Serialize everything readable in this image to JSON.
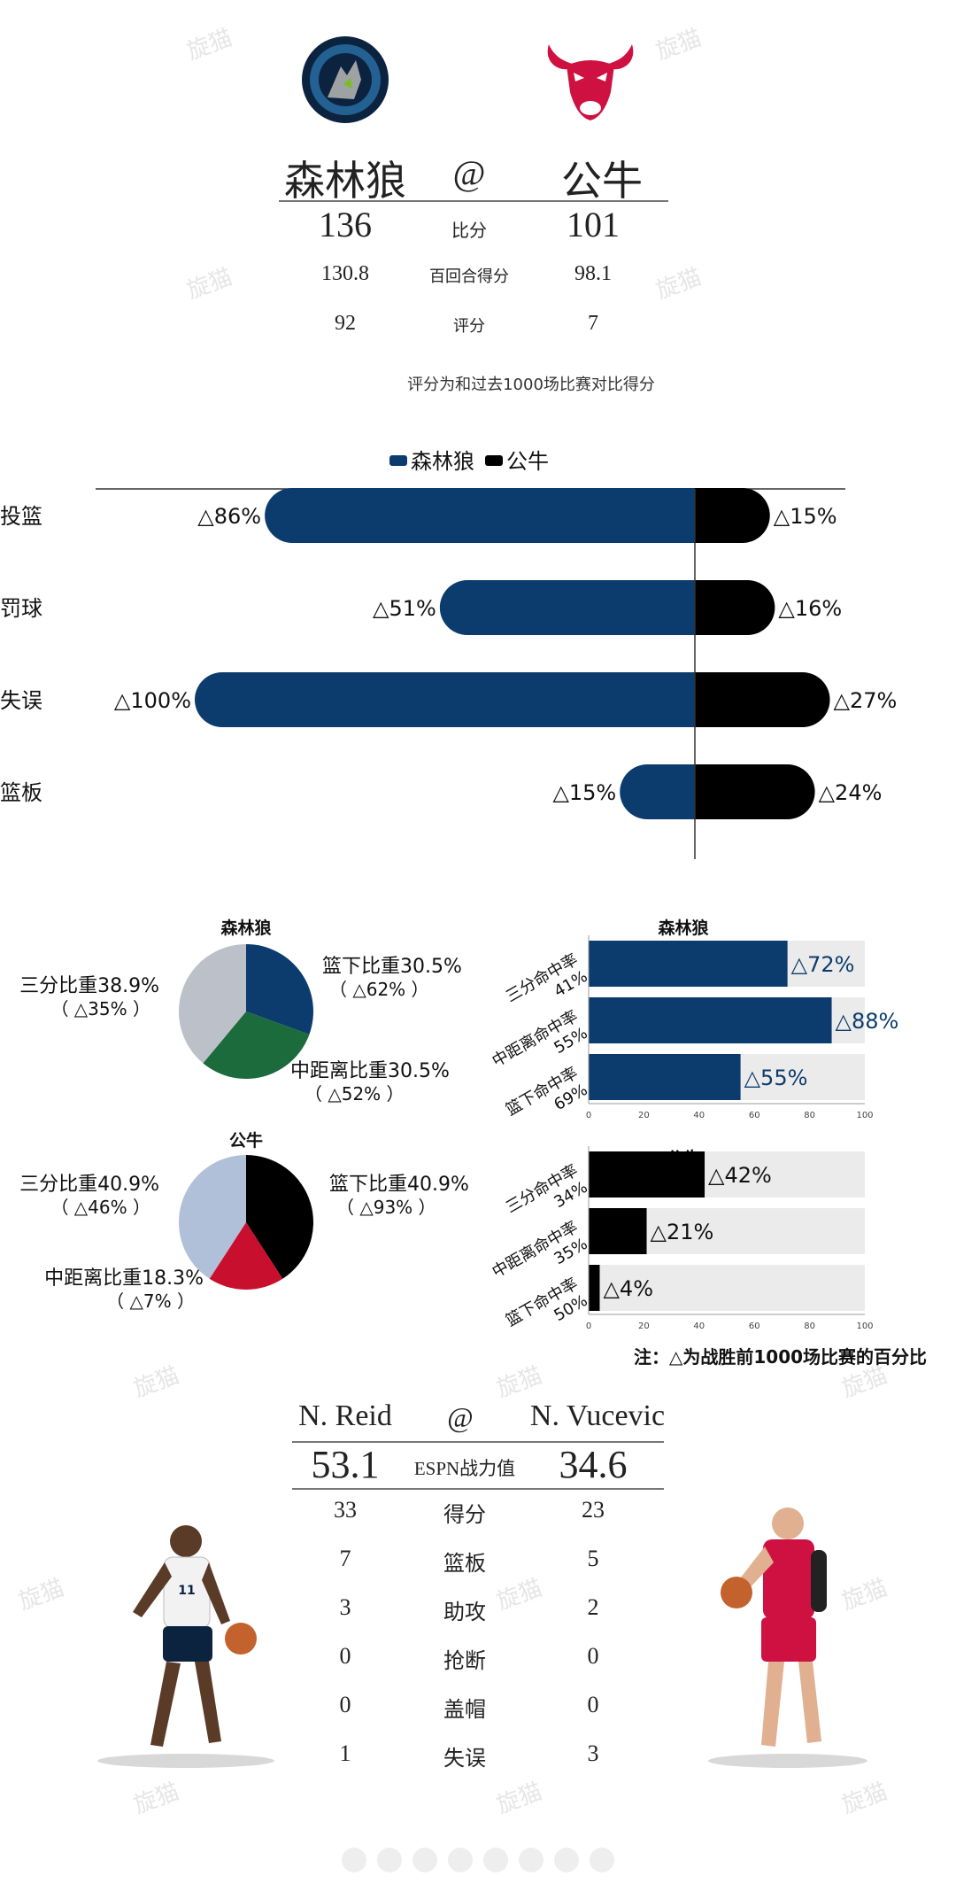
{
  "watermark": "旋猫",
  "game": {
    "away_team": "森林狼",
    "at_sign": "@",
    "home_team": "公牛",
    "stats": [
      {
        "label": "比分",
        "away": "136",
        "home": "101"
      },
      {
        "label": "百回合得分",
        "away": "130.8",
        "home": "98.1"
      },
      {
        "label": "评分",
        "away": "92",
        "home": "7"
      }
    ],
    "rating_note": "评分为和过去1000场比赛对比得分",
    "colors": {
      "away": "#0c3c6e",
      "home": "#000000"
    }
  },
  "chart_data": [
    {
      "type": "bar",
      "orientation": "horizontal-diverging",
      "legend": [
        "森林狼",
        "公牛"
      ],
      "legend_position": "top",
      "categories": [
        "投篮",
        "罚球",
        "失误",
        "篮板"
      ],
      "series": [
        {
          "name": "森林狼",
          "values": [
            86,
            51,
            100,
            15
          ],
          "labels": [
            "△86%",
            "△51%",
            "△100%",
            "△15%"
          ],
          "color": "#0c3c6e"
        },
        {
          "name": "公牛",
          "values": [
            15,
            16,
            27,
            24
          ],
          "labels": [
            "△15%",
            "△16%",
            "△27%",
            "△24%"
          ],
          "color": "#000000"
        }
      ]
    },
    {
      "type": "pie",
      "title": "森林狼",
      "slices": [
        {
          "label": "篮下比重30.5%",
          "sub": "（ △62% ）",
          "value": 30.5,
          "color": "#0c3c6e"
        },
        {
          "label": "中距离比重30.5%",
          "sub": "（ △52% ）",
          "value": 30.5,
          "color": "#1b6b3c"
        },
        {
          "label": "三分比重38.9%",
          "sub": "（ △35% ）",
          "value": 38.9,
          "color": "#bcc0c8"
        }
      ]
    },
    {
      "type": "bar",
      "title": "森林狼",
      "orientation": "horizontal",
      "xlim": [
        0,
        100
      ],
      "ticks": [
        "0",
        "20",
        "40",
        "60",
        "80",
        "100"
      ],
      "categories": [
        {
          "line1": "三分命中率",
          "line2": "41%"
        },
        {
          "line1": "中距离命中率",
          "line2": "55%"
        },
        {
          "line1": "篮下命中率",
          "line2": "69%"
        }
      ],
      "values": [
        72,
        88,
        55
      ],
      "labels": [
        "△72%",
        "△88%",
        "△55%"
      ],
      "color": "#0c3c6e"
    },
    {
      "type": "pie",
      "title": "公牛",
      "slices": [
        {
          "label": "篮下比重40.9%",
          "sub": "（ △93% ）",
          "value": 40.9,
          "color": "#000000"
        },
        {
          "label": "中距离比重18.3%",
          "sub": "（ △7% ）",
          "value": 18.3,
          "color": "#c8102e"
        },
        {
          "label": "三分比重40.9%",
          "sub": "（ △46% ）",
          "value": 40.9,
          "color": "#b0c0d8"
        }
      ]
    },
    {
      "type": "bar",
      "title": "公牛",
      "orientation": "horizontal",
      "xlim": [
        0,
        100
      ],
      "ticks": [
        "0",
        "20",
        "40",
        "60",
        "80",
        "100"
      ],
      "categories": [
        {
          "line1": "三分命中率",
          "line2": "34%"
        },
        {
          "line1": "中距离命中率",
          "line2": "35%"
        },
        {
          "line1": "篮下命中率",
          "line2": "50%"
        }
      ],
      "values": [
        42,
        21,
        4
      ],
      "labels": [
        "△42%",
        "△21%",
        "△4%"
      ],
      "color": "#000000"
    }
  ],
  "note": "注：△为战胜前1000场比赛的百分比",
  "players": {
    "away_name": "N. Reid",
    "at_sign": "@",
    "home_name": "N. Vucevic",
    "espn_label": "ESPN战力值",
    "away_espn": "53.1",
    "home_espn": "34.6",
    "rows": [
      {
        "label": "得分",
        "away": "33",
        "home": "23"
      },
      {
        "label": "篮板",
        "away": "7",
        "home": "5"
      },
      {
        "label": "助攻",
        "away": "3",
        "home": "2"
      },
      {
        "label": "抢断",
        "away": "0",
        "home": "0"
      },
      {
        "label": "盖帽",
        "away": "0",
        "home": "0"
      },
      {
        "label": "失误",
        "away": "1",
        "home": "3"
      }
    ]
  }
}
